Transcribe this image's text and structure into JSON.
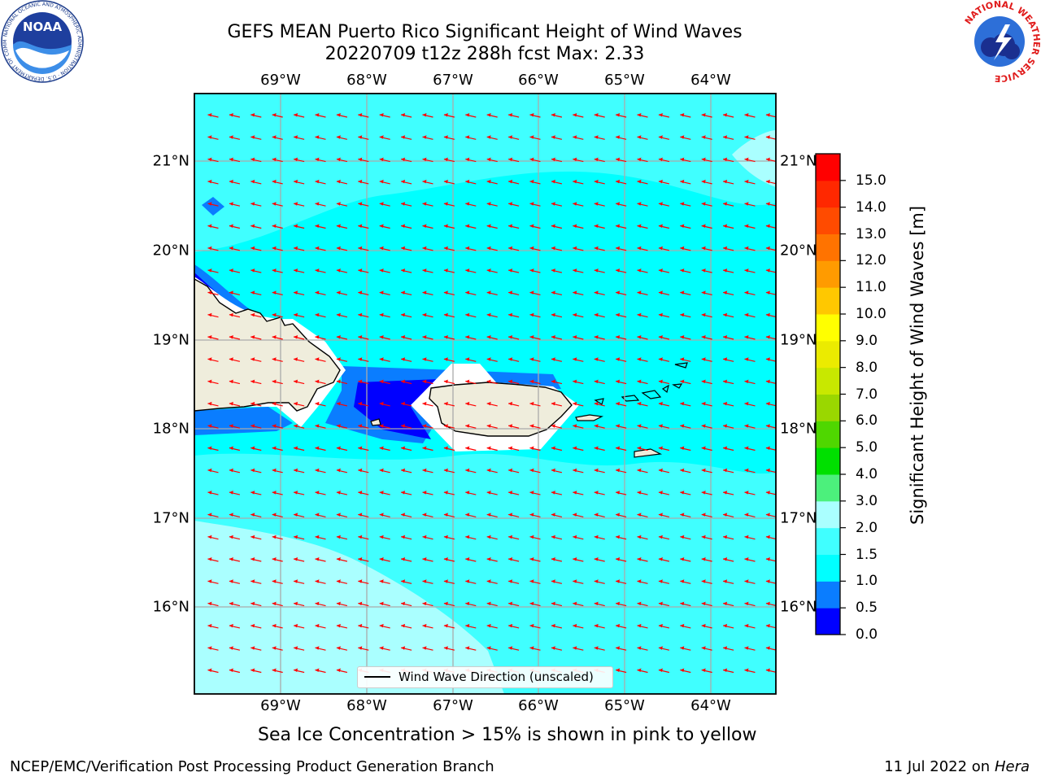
{
  "title": {
    "line1": "GEFS MEAN Puerto Rico Significant Height of Wind Waves",
    "line2": "20220709 t12z 288h fcst   Max: 2.33"
  },
  "map": {
    "lon_ticks": [
      "69°W",
      "68°W",
      "67°W",
      "66°W",
      "65°W",
      "64°W"
    ],
    "lat_ticks": [
      "21°N",
      "20°N",
      "19°N",
      "18°N",
      "17°N",
      "16°N"
    ],
    "land_color": "#efeddc",
    "ocean_color": "#00ffff",
    "vector_color": "#ff0000",
    "gridlines": true
  },
  "legend": {
    "label": "Wind Wave Direction (unscaled)"
  },
  "colorbar": {
    "label": "Significant Height of Wind Waves [m]",
    "ticks": [
      "0.0",
      "0.5",
      "1.0",
      "1.5",
      "2.0",
      "3.0",
      "4.0",
      "5.0",
      "6.0",
      "7.0",
      "8.0",
      "9.0",
      "10.0",
      "11.0",
      "12.0",
      "13.0",
      "14.0",
      "15.0"
    ],
    "colors": [
      "#0000ff",
      "#0a7dff",
      "#00ffff",
      "#40ffff",
      "#aaffff",
      "#4cf07c",
      "#00e000",
      "#4fd700",
      "#9ad700",
      "#c8e800",
      "#ebeb00",
      "#ffff00",
      "#ffc800",
      "#ff9b00",
      "#ff7300",
      "#ff4b00",
      "#ff2800",
      "#ff0000"
    ]
  },
  "note": "Sea Ice Concentration > 15% is shown in pink to yellow",
  "footer": {
    "left": "NCEP/EMC/Verification Post Processing Product Generation Branch",
    "right_date": "11 Jul 2022 on ",
    "right_machine": "Hera"
  },
  "logos": {
    "left_text": "NOAA",
    "left_ring": "NATIONAL OCEANIC AND ATMOSPHERIC ADMINISTRATION · U.S. DEPARTMENT OF COMMERCE",
    "right_ring": "NATIONAL WEATHER SERVICE"
  }
}
